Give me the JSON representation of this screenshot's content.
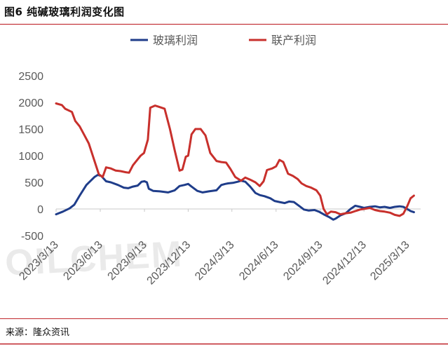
{
  "page": {
    "title": "图6  纯碱玻璃利润变化图",
    "source": "来源：隆众资讯",
    "watermark": "OILCHEM"
  },
  "colors": {
    "glass": "#1F3D8A",
    "soda": "#C8302C",
    "frame": "#C0262C",
    "text": "#595959"
  },
  "chart_data": {
    "type": "line",
    "title": "",
    "xlabel": "",
    "ylabel": "",
    "ylim": [
      -500,
      2500
    ],
    "yticks": [
      -500,
      0,
      500,
      1000,
      1500,
      2000,
      2500
    ],
    "xlim": [
      "2023-03-13",
      "2025-04-10"
    ],
    "xticks": [
      "2023/3/13",
      "2023/6/13",
      "2023/9/13",
      "2023/12/13",
      "2024/3/13",
      "2024/6/13",
      "2024/9/13",
      "2024/12/13",
      "2025/3/13"
    ],
    "grid": false,
    "legend_position": "top",
    "series": [
      {
        "name": "玻璃利润",
        "color": "#1F3D8A",
        "points": [
          [
            "2023-03-13",
            -100
          ],
          [
            "2023-03-27",
            -50
          ],
          [
            "2023-04-10",
            10
          ],
          [
            "2023-04-20",
            80
          ],
          [
            "2023-05-01",
            250
          ],
          [
            "2023-05-15",
            450
          ],
          [
            "2023-06-01",
            600
          ],
          [
            "2023-06-08",
            640
          ],
          [
            "2023-06-15",
            620
          ],
          [
            "2023-06-25",
            520
          ],
          [
            "2023-07-05",
            500
          ],
          [
            "2023-07-20",
            450
          ],
          [
            "2023-08-01",
            400
          ],
          [
            "2023-08-10",
            390
          ],
          [
            "2023-08-20",
            420
          ],
          [
            "2023-08-30",
            440
          ],
          [
            "2023-09-07",
            510
          ],
          [
            "2023-09-13",
            520
          ],
          [
            "2023-09-18",
            500
          ],
          [
            "2023-09-22",
            380
          ],
          [
            "2023-10-01",
            340
          ],
          [
            "2023-10-15",
            330
          ],
          [
            "2023-11-01",
            310
          ],
          [
            "2023-11-15",
            350
          ],
          [
            "2023-11-25",
            430
          ],
          [
            "2023-12-05",
            450
          ],
          [
            "2023-12-13",
            470
          ],
          [
            "2023-12-20",
            420
          ],
          [
            "2024-01-01",
            340
          ],
          [
            "2024-01-12",
            310
          ],
          [
            "2024-01-25",
            330
          ],
          [
            "2024-02-10",
            350
          ],
          [
            "2024-02-20",
            450
          ],
          [
            "2024-02-28",
            470
          ],
          [
            "2024-03-05",
            480
          ],
          [
            "2024-03-15",
            490
          ],
          [
            "2024-03-25",
            510
          ],
          [
            "2024-04-01",
            530
          ],
          [
            "2024-04-10",
            510
          ],
          [
            "2024-04-20",
            420
          ],
          [
            "2024-05-01",
            300
          ],
          [
            "2024-05-10",
            260
          ],
          [
            "2024-05-20",
            240
          ],
          [
            "2024-06-01",
            200
          ],
          [
            "2024-06-10",
            150
          ],
          [
            "2024-06-20",
            130
          ],
          [
            "2024-07-01",
            110
          ],
          [
            "2024-07-10",
            140
          ],
          [
            "2024-07-20",
            130
          ],
          [
            "2024-08-01",
            50
          ],
          [
            "2024-08-10",
            -10
          ],
          [
            "2024-08-20",
            -30
          ],
          [
            "2024-09-01",
            -20
          ],
          [
            "2024-09-10",
            -50
          ],
          [
            "2024-09-20",
            -100
          ],
          [
            "2024-10-01",
            -150
          ],
          [
            "2024-10-10",
            -200
          ],
          [
            "2024-10-15",
            -180
          ],
          [
            "2024-10-25",
            -120
          ],
          [
            "2024-11-05",
            -80
          ],
          [
            "2024-11-15",
            0
          ],
          [
            "2024-11-25",
            60
          ],
          [
            "2024-12-05",
            40
          ],
          [
            "2024-12-13",
            20
          ],
          [
            "2024-12-25",
            40
          ],
          [
            "2025-01-05",
            50
          ],
          [
            "2025-01-15",
            30
          ],
          [
            "2025-01-25",
            40
          ],
          [
            "2025-02-05",
            20
          ],
          [
            "2025-02-15",
            40
          ],
          [
            "2025-02-25",
            50
          ],
          [
            "2025-03-05",
            40
          ],
          [
            "2025-03-13",
            0
          ],
          [
            "2025-03-20",
            -40
          ],
          [
            "2025-03-27",
            -60
          ]
        ]
      },
      {
        "name": "联产利润",
        "color": "#C8302C",
        "points": [
          [
            "2023-03-13",
            1980
          ],
          [
            "2023-03-25",
            1950
          ],
          [
            "2023-04-01",
            1880
          ],
          [
            "2023-04-15",
            1820
          ],
          [
            "2023-04-22",
            1650
          ],
          [
            "2023-05-01",
            1550
          ],
          [
            "2023-05-10",
            1400
          ],
          [
            "2023-05-20",
            1230
          ],
          [
            "2023-06-01",
            900
          ],
          [
            "2023-06-10",
            650
          ],
          [
            "2023-06-18",
            600
          ],
          [
            "2023-06-25",
            780
          ],
          [
            "2023-07-05",
            760
          ],
          [
            "2023-07-15",
            720
          ],
          [
            "2023-07-25",
            710
          ],
          [
            "2023-08-05",
            690
          ],
          [
            "2023-08-12",
            680
          ],
          [
            "2023-08-20",
            820
          ],
          [
            "2023-08-28",
            910
          ],
          [
            "2023-09-05",
            1000
          ],
          [
            "2023-09-12",
            1050
          ],
          [
            "2023-09-20",
            1300
          ],
          [
            "2023-09-25",
            1900
          ],
          [
            "2023-10-05",
            1940
          ],
          [
            "2023-10-12",
            1920
          ],
          [
            "2023-10-25",
            1880
          ],
          [
            "2023-11-05",
            1500
          ],
          [
            "2023-11-15",
            1100
          ],
          [
            "2023-11-25",
            720
          ],
          [
            "2023-12-01",
            740
          ],
          [
            "2023-12-08",
            980
          ],
          [
            "2023-12-13",
            1000
          ],
          [
            "2023-12-20",
            1400
          ],
          [
            "2023-12-28",
            1500
          ],
          [
            "2024-01-08",
            1500
          ],
          [
            "2024-01-18",
            1380
          ],
          [
            "2024-01-28",
            1050
          ],
          [
            "2024-02-10",
            900
          ],
          [
            "2024-02-20",
            880
          ],
          [
            "2024-03-01",
            870
          ],
          [
            "2024-03-10",
            750
          ],
          [
            "2024-03-20",
            600
          ],
          [
            "2024-04-01",
            530
          ],
          [
            "2024-04-10",
            590
          ],
          [
            "2024-04-20",
            550
          ],
          [
            "2024-05-01",
            500
          ],
          [
            "2024-05-10",
            430
          ],
          [
            "2024-05-18",
            520
          ],
          [
            "2024-05-25",
            730
          ],
          [
            "2024-06-05",
            760
          ],
          [
            "2024-06-13",
            800
          ],
          [
            "2024-06-20",
            920
          ],
          [
            "2024-06-28",
            880
          ],
          [
            "2024-07-08",
            660
          ],
          [
            "2024-07-18",
            620
          ],
          [
            "2024-07-28",
            560
          ],
          [
            "2024-08-05",
            480
          ],
          [
            "2024-08-15",
            430
          ],
          [
            "2024-08-25",
            400
          ],
          [
            "2024-09-05",
            350
          ],
          [
            "2024-09-13",
            250
          ],
          [
            "2024-09-20",
            0
          ],
          [
            "2024-09-27",
            -100
          ],
          [
            "2024-10-05",
            -50
          ],
          [
            "2024-10-15",
            -60
          ],
          [
            "2024-10-25",
            -100
          ],
          [
            "2024-11-05",
            -80
          ],
          [
            "2024-11-15",
            -70
          ],
          [
            "2024-11-25",
            -40
          ],
          [
            "2024-12-05",
            -10
          ],
          [
            "2024-12-13",
            0
          ],
          [
            "2024-12-25",
            20
          ],
          [
            "2025-01-05",
            -20
          ],
          [
            "2025-01-15",
            -40
          ],
          [
            "2025-01-25",
            -50
          ],
          [
            "2025-02-05",
            -70
          ],
          [
            "2025-02-15",
            -110
          ],
          [
            "2025-02-25",
            -130
          ],
          [
            "2025-03-05",
            -90
          ],
          [
            "2025-03-13",
            50
          ],
          [
            "2025-03-20",
            200
          ],
          [
            "2025-03-27",
            250
          ]
        ]
      }
    ]
  }
}
